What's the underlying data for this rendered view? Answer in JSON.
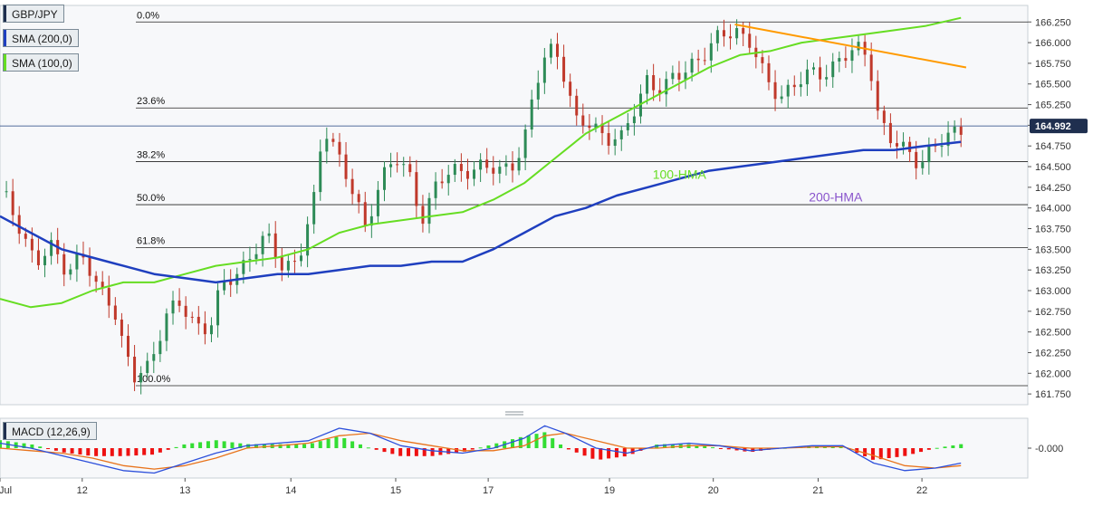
{
  "colors": {
    "background": "#ffffff",
    "plot_bg": "#f7f8fa",
    "up_candle": "#2e8b57",
    "down_candle": "#c0392b",
    "sma200": "#1f3fbf",
    "sma100": "#66dd22",
    "trendline": "#ff9a00",
    "macd_line": "#2c4fdb",
    "signal_line": "#e8731b",
    "hist_pos": "#33dd33",
    "hist_neg": "#ee1111",
    "fib_line": "#222222",
    "price_tag_bg": "#1f2f4f"
  },
  "legend": {
    "symbol": "GBP/JPY",
    "sma200": "SMA (200,0)",
    "sma100": "SMA (100,0)",
    "macd": "MACD (12,26,9)"
  },
  "chart_data": [
    {
      "type": "candlestick",
      "title": "GBP/JPY",
      "ylim": [
        161.62,
        166.45
      ],
      "y_ticks": [
        "166.250",
        "166.000",
        "165.750",
        "165.500",
        "165.250",
        "165.000",
        "164.750",
        "164.500",
        "164.250",
        "164.000",
        "163.750",
        "163.500",
        "163.250",
        "163.000",
        "162.750",
        "162.500",
        "162.250",
        "162.000",
        "161.750"
      ],
      "x_ticks": [
        "Jul",
        "12",
        "13",
        "14",
        "15",
        "17",
        "19",
        "20",
        "21",
        "22"
      ],
      "last_price": "164.992",
      "fibonacci": [
        {
          "label": "0.0%",
          "price": 166.25
        },
        {
          "label": "23.6%",
          "price": 165.21
        },
        {
          "label": "38.2%",
          "price": 164.56
        },
        {
          "label": "50.0%",
          "price": 164.04
        },
        {
          "label": "61.8%",
          "price": 163.52
        },
        {
          "label": "100.0%",
          "price": 161.85
        }
      ],
      "annotations": [
        {
          "text": "100-HMA",
          "color": "#66dd22"
        },
        {
          "text": "200-HMA",
          "color": "#8a55cc"
        }
      ],
      "close_path": [
        [
          0,
          164.2
        ],
        [
          0.02,
          163.8
        ],
        [
          0.035,
          163.3
        ],
        [
          0.05,
          163.5
        ],
        [
          0.065,
          163.3
        ],
        [
          0.08,
          163.4
        ],
        [
          0.095,
          163.0
        ],
        [
          0.11,
          162.9
        ],
        [
          0.12,
          162.3
        ],
        [
          0.13,
          161.9
        ],
        [
          0.145,
          162.1
        ],
        [
          0.16,
          162.7
        ],
        [
          0.175,
          162.8
        ],
        [
          0.19,
          162.6
        ],
        [
          0.205,
          162.6
        ],
        [
          0.215,
          163.0
        ],
        [
          0.23,
          163.2
        ],
        [
          0.245,
          163.5
        ],
        [
          0.26,
          163.6
        ],
        [
          0.275,
          163.3
        ],
        [
          0.29,
          163.4
        ],
        [
          0.305,
          164.0
        ],
        [
          0.315,
          165.0
        ],
        [
          0.325,
          164.8
        ],
        [
          0.34,
          164.3
        ],
        [
          0.355,
          163.7
        ],
        [
          0.37,
          164.4
        ],
        [
          0.385,
          164.6
        ],
        [
          0.4,
          164.3
        ],
        [
          0.41,
          163.9
        ],
        [
          0.425,
          164.3
        ],
        [
          0.44,
          164.4
        ],
        [
          0.455,
          164.5
        ],
        [
          0.47,
          164.5
        ],
        [
          0.485,
          164.4
        ],
        [
          0.5,
          164.6
        ],
        [
          0.51,
          164.8
        ],
        [
          0.52,
          165.4
        ],
        [
          0.53,
          165.8
        ],
        [
          0.54,
          166.0
        ],
        [
          0.55,
          165.6
        ],
        [
          0.56,
          165.0
        ],
        [
          0.575,
          165.0
        ],
        [
          0.59,
          164.9
        ],
        [
          0.605,
          164.8
        ],
        [
          0.615,
          165.1
        ],
        [
          0.63,
          165.6
        ],
        [
          0.645,
          165.4
        ],
        [
          0.66,
          165.6
        ],
        [
          0.675,
          165.8
        ],
        [
          0.69,
          165.9
        ],
        [
          0.705,
          166.1
        ],
        [
          0.715,
          166.2
        ],
        [
          0.73,
          166.0
        ],
        [
          0.745,
          165.5
        ],
        [
          0.76,
          165.4
        ],
        [
          0.775,
          165.5
        ],
        [
          0.79,
          165.6
        ],
        [
          0.805,
          165.7
        ],
        [
          0.82,
          165.8
        ],
        [
          0.835,
          165.9
        ],
        [
          0.845,
          165.9
        ],
        [
          0.855,
          165.1
        ],
        [
          0.865,
          164.8
        ],
        [
          0.88,
          164.7
        ],
        [
          0.895,
          164.6
        ],
        [
          0.91,
          164.7
        ],
        [
          0.925,
          164.9
        ],
        [
          0.935,
          164.99
        ]
      ],
      "sma100_path": [
        [
          0,
          162.9
        ],
        [
          0.03,
          162.8
        ],
        [
          0.06,
          162.85
        ],
        [
          0.09,
          163.0
        ],
        [
          0.12,
          163.1
        ],
        [
          0.15,
          163.1
        ],
        [
          0.18,
          163.2
        ],
        [
          0.21,
          163.3
        ],
        [
          0.24,
          163.35
        ],
        [
          0.27,
          163.4
        ],
        [
          0.3,
          163.5
        ],
        [
          0.33,
          163.7
        ],
        [
          0.36,
          163.8
        ],
        [
          0.39,
          163.85
        ],
        [
          0.42,
          163.9
        ],
        [
          0.45,
          163.95
        ],
        [
          0.48,
          164.1
        ],
        [
          0.51,
          164.3
        ],
        [
          0.54,
          164.6
        ],
        [
          0.57,
          164.9
        ],
        [
          0.6,
          165.1
        ],
        [
          0.63,
          165.3
        ],
        [
          0.66,
          165.5
        ],
        [
          0.69,
          165.7
        ],
        [
          0.72,
          165.85
        ],
        [
          0.75,
          165.9
        ],
        [
          0.78,
          166.0
        ],
        [
          0.81,
          166.05
        ],
        [
          0.84,
          166.1
        ],
        [
          0.87,
          166.15
        ],
        [
          0.9,
          166.2
        ],
        [
          0.935,
          166.3
        ]
      ],
      "sma200_path": [
        [
          0,
          163.9
        ],
        [
          0.03,
          163.7
        ],
        [
          0.06,
          163.5
        ],
        [
          0.09,
          163.4
        ],
        [
          0.12,
          163.3
        ],
        [
          0.15,
          163.2
        ],
        [
          0.18,
          163.15
        ],
        [
          0.21,
          163.1
        ],
        [
          0.24,
          163.15
        ],
        [
          0.27,
          163.2
        ],
        [
          0.3,
          163.2
        ],
        [
          0.33,
          163.25
        ],
        [
          0.36,
          163.3
        ],
        [
          0.39,
          163.3
        ],
        [
          0.42,
          163.35
        ],
        [
          0.45,
          163.35
        ],
        [
          0.48,
          163.5
        ],
        [
          0.51,
          163.7
        ],
        [
          0.54,
          163.9
        ],
        [
          0.57,
          164.0
        ],
        [
          0.6,
          164.15
        ],
        [
          0.63,
          164.25
        ],
        [
          0.66,
          164.35
        ],
        [
          0.69,
          164.45
        ],
        [
          0.72,
          164.5
        ],
        [
          0.75,
          164.55
        ],
        [
          0.78,
          164.6
        ],
        [
          0.81,
          164.65
        ],
        [
          0.84,
          164.7
        ],
        [
          0.87,
          164.7
        ],
        [
          0.9,
          164.75
        ],
        [
          0.935,
          164.8
        ]
      ],
      "trendline": [
        [
          0.715,
          166.22
        ],
        [
          0.94,
          165.7
        ]
      ]
    },
    {
      "type": "line",
      "title": "MACD (12,26,9)",
      "ylim": [
        -0.6,
        0.6
      ],
      "y_ticks": [
        "-0.000"
      ],
      "macd_path": [
        [
          0,
          0.1
        ],
        [
          0.03,
          0.0
        ],
        [
          0.06,
          -0.15
        ],
        [
          0.09,
          -0.3
        ],
        [
          0.12,
          -0.45
        ],
        [
          0.15,
          -0.5
        ],
        [
          0.18,
          -0.3
        ],
        [
          0.21,
          -0.1
        ],
        [
          0.24,
          0.05
        ],
        [
          0.27,
          0.1
        ],
        [
          0.3,
          0.15
        ],
        [
          0.33,
          0.4
        ],
        [
          0.36,
          0.3
        ],
        [
          0.39,
          0.05
        ],
        [
          0.42,
          -0.05
        ],
        [
          0.45,
          -0.1
        ],
        [
          0.48,
          0.0
        ],
        [
          0.51,
          0.2
        ],
        [
          0.53,
          0.45
        ],
        [
          0.55,
          0.3
        ],
        [
          0.58,
          0.0
        ],
        [
          0.61,
          -0.1
        ],
        [
          0.64,
          0.05
        ],
        [
          0.67,
          0.1
        ],
        [
          0.7,
          0.05
        ],
        [
          0.73,
          -0.05
        ],
        [
          0.76,
          0.0
        ],
        [
          0.79,
          0.05
        ],
        [
          0.82,
          0.05
        ],
        [
          0.85,
          -0.3
        ],
        [
          0.88,
          -0.45
        ],
        [
          0.91,
          -0.4
        ],
        [
          0.935,
          -0.3
        ]
      ],
      "signal_path": [
        [
          0,
          0.0
        ],
        [
          0.03,
          -0.05
        ],
        [
          0.06,
          -0.1
        ],
        [
          0.09,
          -0.2
        ],
        [
          0.12,
          -0.35
        ],
        [
          0.15,
          -0.42
        ],
        [
          0.18,
          -0.35
        ],
        [
          0.21,
          -0.2
        ],
        [
          0.24,
          0.0
        ],
        [
          0.27,
          0.05
        ],
        [
          0.3,
          0.1
        ],
        [
          0.33,
          0.25
        ],
        [
          0.36,
          0.3
        ],
        [
          0.39,
          0.15
        ],
        [
          0.42,
          0.05
        ],
        [
          0.45,
          -0.05
        ],
        [
          0.48,
          -0.05
        ],
        [
          0.51,
          0.05
        ],
        [
          0.53,
          0.25
        ],
        [
          0.55,
          0.3
        ],
        [
          0.58,
          0.15
        ],
        [
          0.61,
          0.0
        ],
        [
          0.64,
          0.0
        ],
        [
          0.67,
          0.05
        ],
        [
          0.7,
          0.05
        ],
        [
          0.73,
          0.0
        ],
        [
          0.76,
          0.0
        ],
        [
          0.79,
          0.02
        ],
        [
          0.82,
          0.03
        ],
        [
          0.85,
          -0.15
        ],
        [
          0.88,
          -0.35
        ],
        [
          0.91,
          -0.4
        ],
        [
          0.935,
          -0.35
        ]
      ]
    }
  ]
}
